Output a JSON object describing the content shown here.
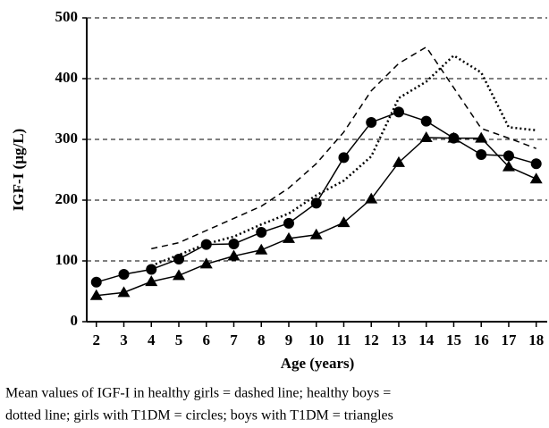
{
  "chart_data": {
    "type": "line",
    "y_label": "IGF-I (µg/L)",
    "x_label": "Age (years)",
    "caption": [
      "Mean values of IGF-I in healthy girls = dashed line; healthy boys =",
      "dotted line; girls with T1DM = circles; boys with T1DM = triangles"
    ],
    "x": [
      2,
      3,
      4,
      5,
      6,
      7,
      8,
      9,
      10,
      11,
      12,
      13,
      14,
      15,
      16,
      17,
      18
    ],
    "series": [
      {
        "color": "#000000",
        "style": "dashed",
        "marker": "none",
        "values": [
          null,
          null,
          120,
          130,
          150,
          170,
          190,
          220,
          260,
          312,
          380,
          425,
          452,
          385,
          318,
          302,
          285
        ]
      },
      {
        "color": "#000000",
        "style": "dotted",
        "marker": "none",
        "values": [
          null,
          null,
          92,
          110,
          128,
          140,
          160,
          178,
          208,
          232,
          272,
          368,
          395,
          438,
          410,
          320,
          315
        ]
      },
      {
        "color": "#000000",
        "style": "solid",
        "marker": "circle",
        "values": [
          65,
          78,
          86,
          103,
          127,
          128,
          147,
          162,
          195,
          270,
          328,
          345,
          330,
          302,
          275,
          273,
          260
        ]
      },
      {
        "color": "#000000",
        "style": "solid",
        "marker": "triangle",
        "values": [
          43,
          48,
          66,
          76,
          95,
          108,
          118,
          137,
          143,
          163,
          202,
          262,
          303,
          302,
          302,
          255,
          235
        ]
      }
    ],
    "xlim": [
      1.65,
      18.4
    ],
    "xticks": [
      2,
      3,
      4,
      5,
      6,
      7,
      8,
      9,
      10,
      11,
      12,
      13,
      14,
      15,
      16,
      17,
      18
    ],
    "ylim": [
      0,
      500
    ],
    "yticks": [
      0,
      100,
      200,
      300,
      400,
      500
    ],
    "grid": true
  }
}
